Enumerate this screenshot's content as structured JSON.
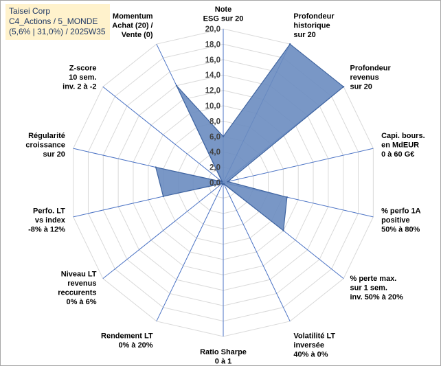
{
  "header": {
    "line1": "Taisei Corp",
    "line2": "C4_Actions / 5_MONDE",
    "line3": "(5,6% | 31,0%) / 2025W35"
  },
  "chart_data": {
    "type": "radar",
    "title": "",
    "rmin": 0,
    "rmax": 20,
    "tick_step": 2,
    "tick_labels": [
      "0,0",
      "2,0",
      "4,0",
      "6,0",
      "8,0",
      "10,0",
      "12,0",
      "14,0",
      "16,0",
      "18,0",
      "20,0"
    ],
    "axes": [
      {
        "label": [
          "Note",
          "ESG sur 20"
        ],
        "value": 6.0
      },
      {
        "label": [
          "Profondeur",
          "historique",
          "sur 20"
        ],
        "value": 20.0
      },
      {
        "label": [
          "Profondeur",
          "revenus",
          "sur 20"
        ],
        "value": 20.0
      },
      {
        "label": [
          "Capi. bours.",
          "en MdEUR",
          "0 à 60 G€"
        ],
        "value": 0.6
      },
      {
        "label": [
          "% perfo 1A",
          "positive",
          "50% à 80%"
        ],
        "value": 8.5
      },
      {
        "label": [
          "% perte max.",
          "sur 1 sem.",
          "inv. 50% à 20%"
        ],
        "value": 10.0
      },
      {
        "label": [
          "Volatilité LT",
          "inversée",
          "40% à 0%"
        ],
        "value": 0.2
      },
      {
        "label": [
          "Ratio Sharpe",
          "0 à 1"
        ],
        "value": 0.2
      },
      {
        "label": [
          "Rendement LT",
          "0% à 20%"
        ],
        "value": 0.2
      },
      {
        "label": [
          "Niveau LT",
          "revenus",
          "reccurents",
          "0% à 6%"
        ],
        "value": 0.2
      },
      {
        "label": [
          "Perfo. LT",
          "vs index",
          "-8% à 12%"
        ],
        "value": 8.0
      },
      {
        "label": [
          "Régularité",
          "croissance",
          "sur 20"
        ],
        "value": 9.0
      },
      {
        "label": [
          "Z-score",
          "10 sem.",
          "inv. 2 à -2"
        ],
        "value": 0.2
      },
      {
        "label": [
          "Momentum",
          "Achat (20) /",
          "Vente (0)"
        ],
        "value": 14.0
      }
    ],
    "series": [
      {
        "name": "",
        "color": "#5b7fb5"
      }
    ],
    "grid": true,
    "colors": {
      "fill": "#6a8cc0",
      "stroke": "#3f64a0",
      "axis": "#4a72c4",
      "grid": "#d9d9d9"
    }
  }
}
